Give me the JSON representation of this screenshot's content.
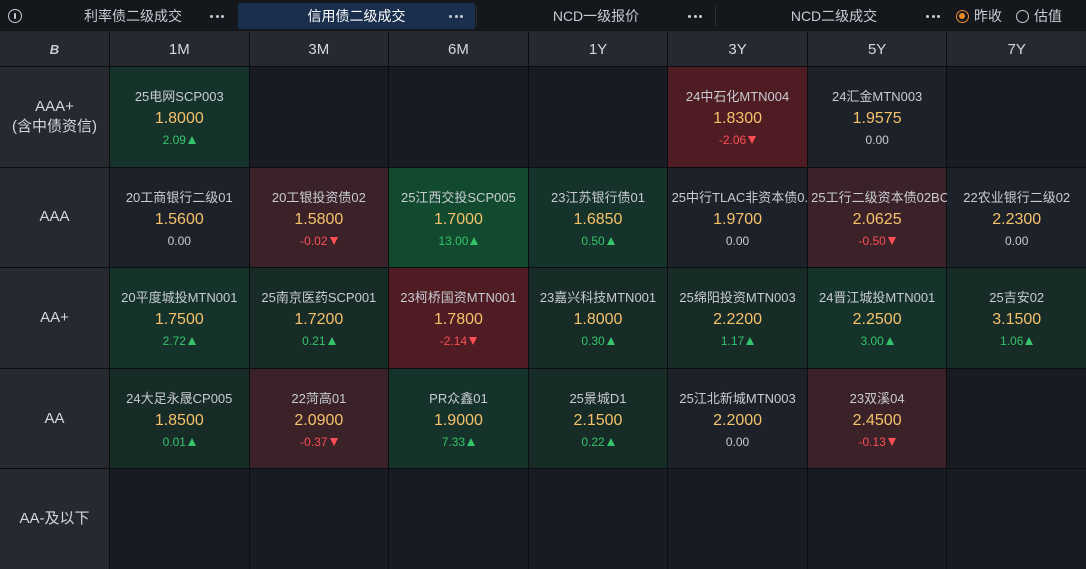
{
  "tabs": [
    {
      "label": "利率债二级成交",
      "active": false
    },
    {
      "label": "信用债二级成交",
      "active": true
    },
    {
      "label": "NCD一级报价",
      "active": false
    },
    {
      "label": "NCD二级成交",
      "active": false
    }
  ],
  "radio": [
    {
      "label": "昨收",
      "selected": true
    },
    {
      "label": "估值",
      "selected": false
    }
  ],
  "corner_logo": "B",
  "columns": [
    "1M",
    "3M",
    "6M",
    "1Y",
    "3Y",
    "5Y",
    "7Y"
  ],
  "rows": [
    {
      "rating": "AAA+",
      "sub": "(含中债资信)"
    },
    {
      "rating": "AAA",
      "sub": ""
    },
    {
      "rating": "AA+",
      "sub": ""
    },
    {
      "rating": "AA",
      "sub": ""
    },
    {
      "rating": "AA-及以下",
      "sub": ""
    }
  ],
  "cells": [
    [
      {
        "name": "25电网SCP003",
        "rate": "1.8000",
        "change": "2.09",
        "dir": "up",
        "bg": "bg-green-dark"
      },
      null,
      null,
      null,
      {
        "name": "24中石化MTN004",
        "rate": "1.8300",
        "change": "-2.06",
        "dir": "down",
        "bg": "bg-red"
      },
      {
        "name": "24汇金MTN003",
        "rate": "1.9575",
        "change": "0.00",
        "dir": "flat",
        "bg": "bg-neutral"
      },
      null
    ],
    [
      {
        "name": "20工商银行二级01",
        "rate": "1.5600",
        "change": "0.00",
        "dir": "flat",
        "bg": "bg-neutral"
      },
      {
        "name": "20工银投资债02",
        "rate": "1.5800",
        "change": "-0.02",
        "dir": "down",
        "bg": "bg-red-dark"
      },
      {
        "name": "25江西交投SCP005",
        "rate": "1.7000",
        "change": "13.00",
        "dir": "up",
        "bg": "bg-green"
      },
      {
        "name": "23江苏银行债01",
        "rate": "1.6850",
        "change": "0.50",
        "dir": "up",
        "bg": "bg-green-dark"
      },
      {
        "name": "25中行TLAC非资本债0...",
        "rate": "1.9700",
        "change": "0.00",
        "dir": "flat",
        "bg": "bg-neutral"
      },
      {
        "name": "25工行二级资本债02BC",
        "rate": "2.0625",
        "change": "-0.50",
        "dir": "down",
        "bg": "bg-red-dark"
      },
      {
        "name": "22农业银行二级02",
        "rate": "2.2300",
        "change": "0.00",
        "dir": "flat",
        "bg": "bg-neutral"
      }
    ],
    [
      {
        "name": "20平度城投MTN001",
        "rate": "1.7500",
        "change": "2.72",
        "dir": "up",
        "bg": "bg-green-dark"
      },
      {
        "name": "25南京医药SCP001",
        "rate": "1.7200",
        "change": "0.21",
        "dir": "up",
        "bg": "bg-greenish"
      },
      {
        "name": "23柯桥国资MTN001",
        "rate": "1.7800",
        "change": "-2.14",
        "dir": "down",
        "bg": "bg-red"
      },
      {
        "name": "23嘉兴科技MTN001",
        "rate": "1.8000",
        "change": "0.30",
        "dir": "up",
        "bg": "bg-greenish"
      },
      {
        "name": "25绵阳投资MTN003",
        "rate": "2.2200",
        "change": "1.17",
        "dir": "up",
        "bg": "bg-greenish"
      },
      {
        "name": "24晋江城投MTN001",
        "rate": "2.2500",
        "change": "3.00",
        "dir": "up",
        "bg": "bg-green-dark"
      },
      {
        "name": "25吉安02",
        "rate": "3.1500",
        "change": "1.06",
        "dir": "up",
        "bg": "bg-greenish"
      }
    ],
    [
      {
        "name": "24大足永晟CP005",
        "rate": "1.8500",
        "change": "0.01",
        "dir": "up",
        "bg": "bg-greenish"
      },
      {
        "name": "22菏高01",
        "rate": "2.0900",
        "change": "-0.37",
        "dir": "down",
        "bg": "bg-red-dark"
      },
      {
        "name": "PR众鑫01",
        "rate": "1.9000",
        "change": "7.33",
        "dir": "up",
        "bg": "bg-green-dark"
      },
      {
        "name": "25景城D1",
        "rate": "2.1500",
        "change": "0.22",
        "dir": "up",
        "bg": "bg-greenish"
      },
      {
        "name": "25江北新城MTN003",
        "rate": "2.2000",
        "change": "0.00",
        "dir": "flat",
        "bg": "bg-neutral"
      },
      {
        "name": "23双溪04",
        "rate": "2.4500",
        "change": "-0.13",
        "dir": "down",
        "bg": "bg-red-dark"
      },
      null
    ],
    [
      null,
      null,
      null,
      null,
      null,
      null,
      null
    ]
  ]
}
